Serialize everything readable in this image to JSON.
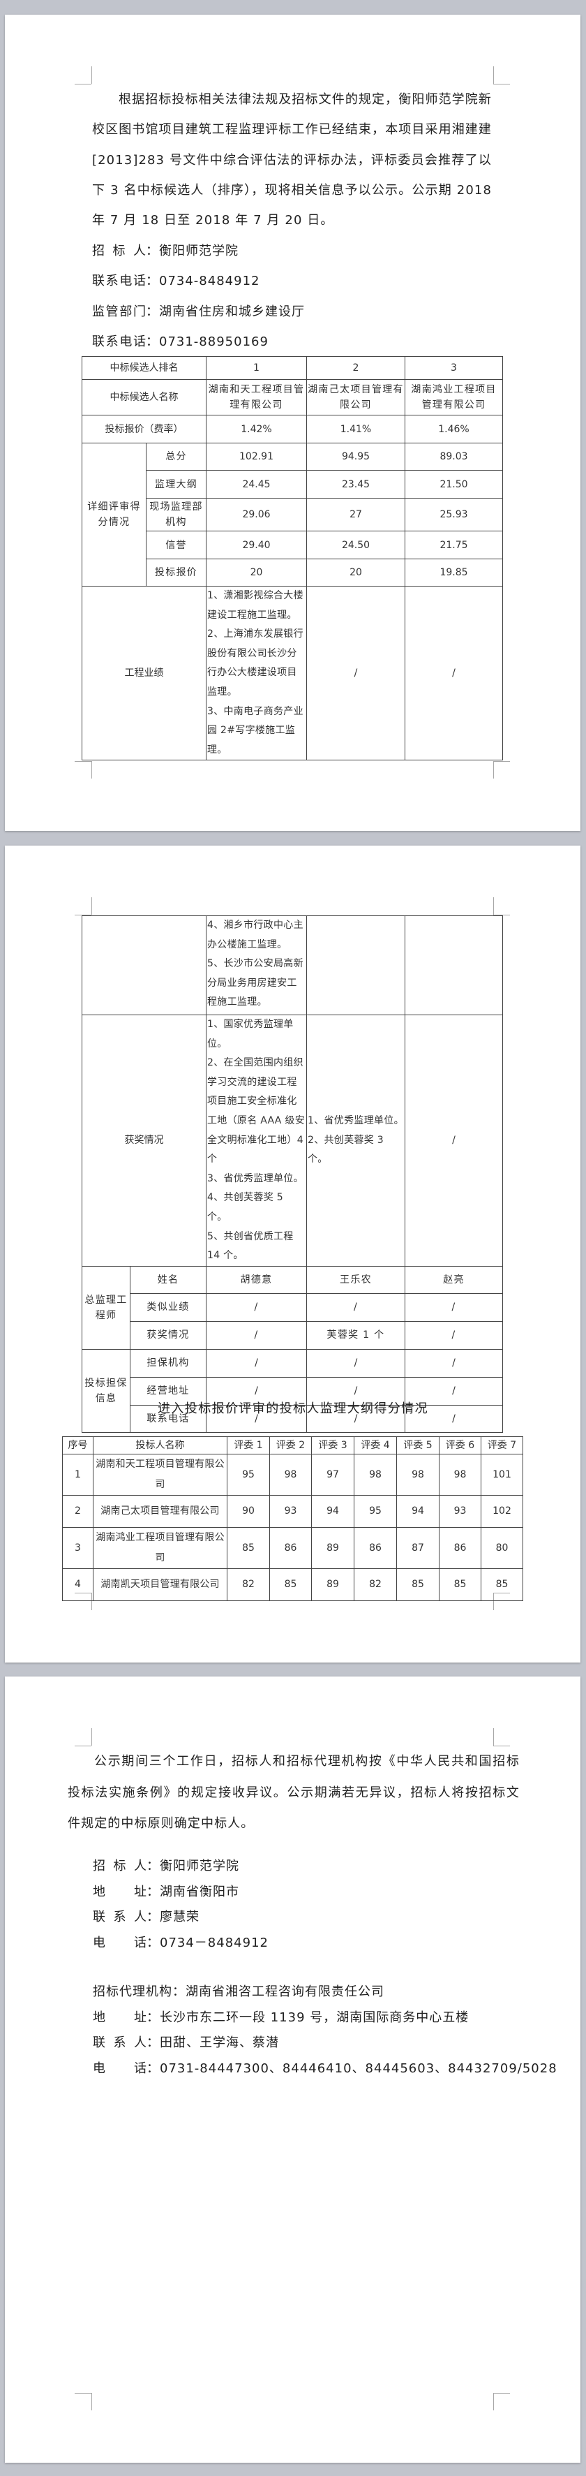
{
  "page1": {
    "paragraph": "根据招标投标相关法律法规及招标文件的规定，衡阳师范学院新校区图书馆项目建筑工程监理评标工作已经结束，本项目采用湘建建[2013]283 号文件中综合评估法的评标办法，评标委员会推荐了以下 3 名中标候选人（排序），现将相关信息予以公示。公示期 2018 年 7 月 18 日至 2018 年 7 月 20 日。",
    "separator": "：",
    "contacts": [
      {
        "label": "招标人",
        "value": "衡阳师范学院"
      },
      {
        "label": "联系电话",
        "value": "0734-8484912"
      },
      {
        "label": "监管部门",
        "value": "湖南省住房和城乡建设厅"
      },
      {
        "label": "联系电话",
        "value": "0731-88950169"
      }
    ]
  },
  "candidates_table": {
    "rank_label": "中标候选人排名",
    "ranks": [
      "1",
      "2",
      "3"
    ],
    "name_label": "中标候选人名称",
    "names": [
      "湖南和天工程项目管理有限公司",
      "湖南己太项目管理有限公司",
      "湖南鸿业工程项目管理有限公司"
    ],
    "bid_rate_label": "投标报价（费率）",
    "bid_rates": [
      "1.42%",
      "1.41%",
      "1.46%"
    ],
    "detail_label": "详细评审得分情况",
    "detail_rows": [
      {
        "label": "总分",
        "values": [
          "102.91",
          "94.95",
          "89.03"
        ]
      },
      {
        "label": "监理大纲",
        "values": [
          "24.45",
          "23.45",
          "21.50"
        ]
      },
      {
        "label": "现场监理部机构",
        "values": [
          "29.06",
          "27",
          "25.93"
        ]
      },
      {
        "label": "信誉",
        "values": [
          "29.40",
          "24.50",
          "21.75"
        ]
      },
      {
        "label": "投标报价",
        "values": [
          "20",
          "20",
          "19.85"
        ]
      }
    ],
    "performance_label": "工程业绩",
    "performance": [
      [
        "1、潇湘影视综合大楼建设工程施工监理。",
        "2、上海浦东发展银行股份有限公司长沙分行办公大楼建设项目监理。",
        "3、中南电子商务产业园 2#写字楼施工监理。",
        "4、湘乡市行政中心主办公楼施工监理。",
        "5、长沙市公安局高新分局业务用房建安工程施工监理。"
      ],
      [
        "/"
      ],
      [
        "/"
      ]
    ],
    "awards_label": "获奖情况",
    "awards": [
      [
        "1、国家优秀监理单位。",
        "2、在全国范围内组织学习交流的建设工程项目施工安全标准化工地（原名 AAA 级安全文明标准化工地）4 个",
        "3、省优秀监理单位。",
        "4、共创芙蓉奖 5 个。",
        "5、共创省优质工程 14 个。"
      ],
      [
        "1、省优秀监理单位。",
        "2、共创芙蓉奖 3 个。"
      ],
      [
        "/"
      ]
    ],
    "chief_engineer_label": "总监理工程师",
    "chief_rows": [
      {
        "label": "姓名",
        "values": [
          "胡德意",
          "王乐农",
          "赵亮"
        ]
      },
      {
        "label": "类似业绩",
        "values": [
          "/",
          "/",
          "/"
        ]
      },
      {
        "label": "获奖情况",
        "values": [
          "/",
          "芙蓉奖 1 个",
          "/"
        ]
      }
    ],
    "guarantee_label": "投标担保信息",
    "guarantee_rows": [
      {
        "label": "担保机构",
        "values": [
          "/",
          "/",
          "/"
        ]
      },
      {
        "label": "经营地址",
        "values": [
          "/",
          "/",
          "/"
        ]
      },
      {
        "label": "联系电话",
        "values": [
          "/",
          "/",
          "/"
        ]
      }
    ]
  },
  "score_table": {
    "title": "进入投标报价评审的投标人监理大纲得分情况",
    "headers": [
      "序号",
      "投标人名称",
      "评委 1",
      "评委 2",
      "评委 3",
      "评委 4",
      "评委 5",
      "评委 6",
      "评委 7"
    ],
    "rows": [
      {
        "no": "1",
        "name": "湖南和天工程项目管理有限公司",
        "scores": [
          "95",
          "98",
          "97",
          "98",
          "98",
          "98",
          "101"
        ]
      },
      {
        "no": "2",
        "name": "湖南己太项目管理有限公司",
        "scores": [
          "90",
          "93",
          "94",
          "95",
          "94",
          "93",
          "102"
        ]
      },
      {
        "no": "3",
        "name": "湖南鸿业工程项目管理有限公司",
        "scores": [
          "85",
          "86",
          "89",
          "86",
          "87",
          "86",
          "80"
        ]
      },
      {
        "no": "4",
        "name": "湖南凯天项目管理有限公司",
        "scores": [
          "82",
          "85",
          "89",
          "82",
          "85",
          "85",
          "85"
        ]
      }
    ]
  },
  "page3": {
    "paragraph": "公示期间三个工作日，招标人和招标代理机构按《中华人民共和国招标投标法实施条例》的规定接收异议。公示期满若无异议，招标人将按招标文件规定的中标原则确定中标人。",
    "separator": "：",
    "tenderer_contacts": [
      {
        "label": "招标人",
        "value": "衡阳师范学院"
      },
      {
        "label": "地址",
        "value": "湖南省衡阳市"
      },
      {
        "label": "联系人",
        "value": "廖慧荣"
      },
      {
        "label": "电话",
        "value": "0734－8484912"
      }
    ],
    "agency_contacts": [
      {
        "label": "招标代理机构",
        "value": "湖南省湘咨工程咨询有限责任公司"
      },
      {
        "label": "地址",
        "value": "长沙市东二环一段 1139 号，湖南国际商务中心五楼"
      },
      {
        "label": "联系人",
        "value": "田甜、王学海、蔡潜"
      },
      {
        "label": "电话",
        "value": "0731-84447300、84446410、84445603、84432709/5028"
      }
    ]
  }
}
